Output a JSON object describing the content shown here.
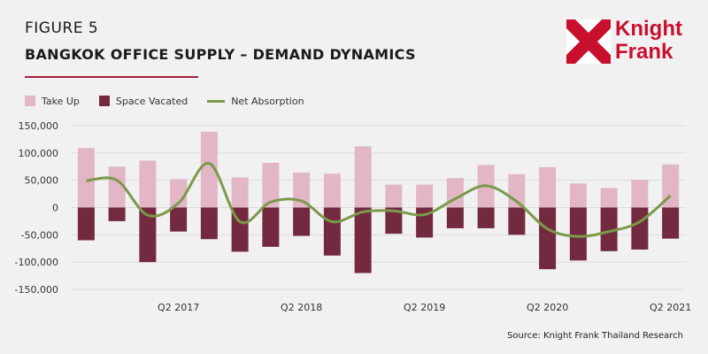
{
  "header": {
    "figure_label": "FIGURE 5",
    "title": "BANGKOK OFFICE SUPPLY – DEMAND DYNAMICS"
  },
  "logo": {
    "line1": "Knight",
    "line2": "Frank"
  },
  "colors": {
    "take_up": "#e2b6c6",
    "space_vacated": "#732a3f",
    "net_absorption": "#7a9a48",
    "brand": "#c8102e",
    "axis_text": "#333333"
  },
  "source": "Source: Knight Frank Thailand Research",
  "chart_data": {
    "type": "bar",
    "x_tick_labels": [
      "Q2 2017",
      "Q2 2018",
      "Q2 2019",
      "Q2 2020",
      "Q2 2021"
    ],
    "x_tick_indices": [
      3,
      7,
      11,
      15,
      19
    ],
    "series": [
      {
        "name": "Take Up",
        "type": "bar",
        "values": [
          109000,
          75000,
          86000,
          52000,
          139000,
          55000,
          82000,
          64000,
          62000,
          112000,
          42000,
          42000,
          54000,
          78000,
          61000,
          74000,
          44000,
          36000,
          51000,
          79000
        ]
      },
      {
        "name": "Space Vacated",
        "type": "bar",
        "values": [
          -60000,
          -25000,
          -100000,
          -44000,
          -58000,
          -81000,
          -72000,
          -52000,
          -88000,
          -120000,
          -48000,
          -55000,
          -38000,
          -38000,
          -50000,
          -113000,
          -97000,
          -80000,
          -77000,
          -57000
        ]
      },
      {
        "name": "Net Absorption",
        "type": "line",
        "values": [
          49000,
          50000,
          -14000,
          8000,
          81000,
          -26000,
          10000,
          12000,
          -26000,
          -8000,
          -6000,
          -13000,
          16000,
          40000,
          11000,
          -39000,
          -53000,
          -44000,
          -26000,
          22000
        ]
      }
    ],
    "ylim": [
      -150000,
      150000
    ],
    "yticks": [
      -150000,
      -100000,
      -50000,
      0,
      50000,
      100000,
      150000
    ],
    "ytick_labels": [
      "-150,000",
      "-100,000",
      "-50,000",
      "0",
      "50,000",
      "100,000",
      "150,000"
    ],
    "grid": true,
    "legend": "top-left"
  }
}
